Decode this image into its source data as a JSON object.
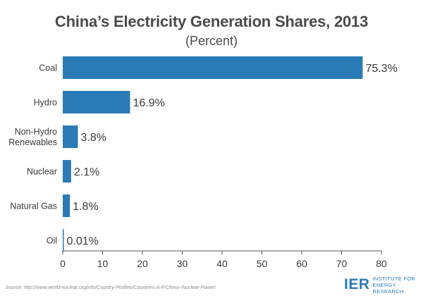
{
  "chart_data": {
    "type": "bar",
    "orientation": "horizontal",
    "title": "China’s Electricity Generation Shares, 2013",
    "subtitle": "(Percent)",
    "categories": [
      "Coal",
      "Hydro",
      "Non-Hydro Renewables",
      "Nuclear",
      "Natural Gas",
      "Oil"
    ],
    "category_lines": [
      [
        "Coal"
      ],
      [
        "Hydro"
      ],
      [
        "Non-Hydro",
        "Renewables"
      ],
      [
        "Nuclear"
      ],
      [
        "Natural Gas"
      ],
      [
        "Oil"
      ]
    ],
    "values": [
      75.3,
      16.9,
      3.8,
      2.1,
      1.8,
      0.01
    ],
    "value_labels": [
      "75.3%",
      "16.9%",
      "3.8%",
      "2.1%",
      "1.8%",
      "0.01%"
    ],
    "xlim": [
      0,
      80
    ],
    "xticks": [
      "0",
      "10",
      "20",
      "30",
      "40",
      "50",
      "60",
      "70",
      "80"
    ],
    "xlabel": "",
    "ylabel": "",
    "grid": false,
    "legend": "none",
    "bar_color": "#2a7ab6"
  },
  "footer": {
    "source": "Source: http://www.world-nuclear.org/info/Country-Profiles/Countries-A-F/China--Nuclear-Power/",
    "logo_mark": "IER",
    "logo_line1": "INSTITUTE FOR",
    "logo_line2": "ENERGY RESEARCH"
  }
}
